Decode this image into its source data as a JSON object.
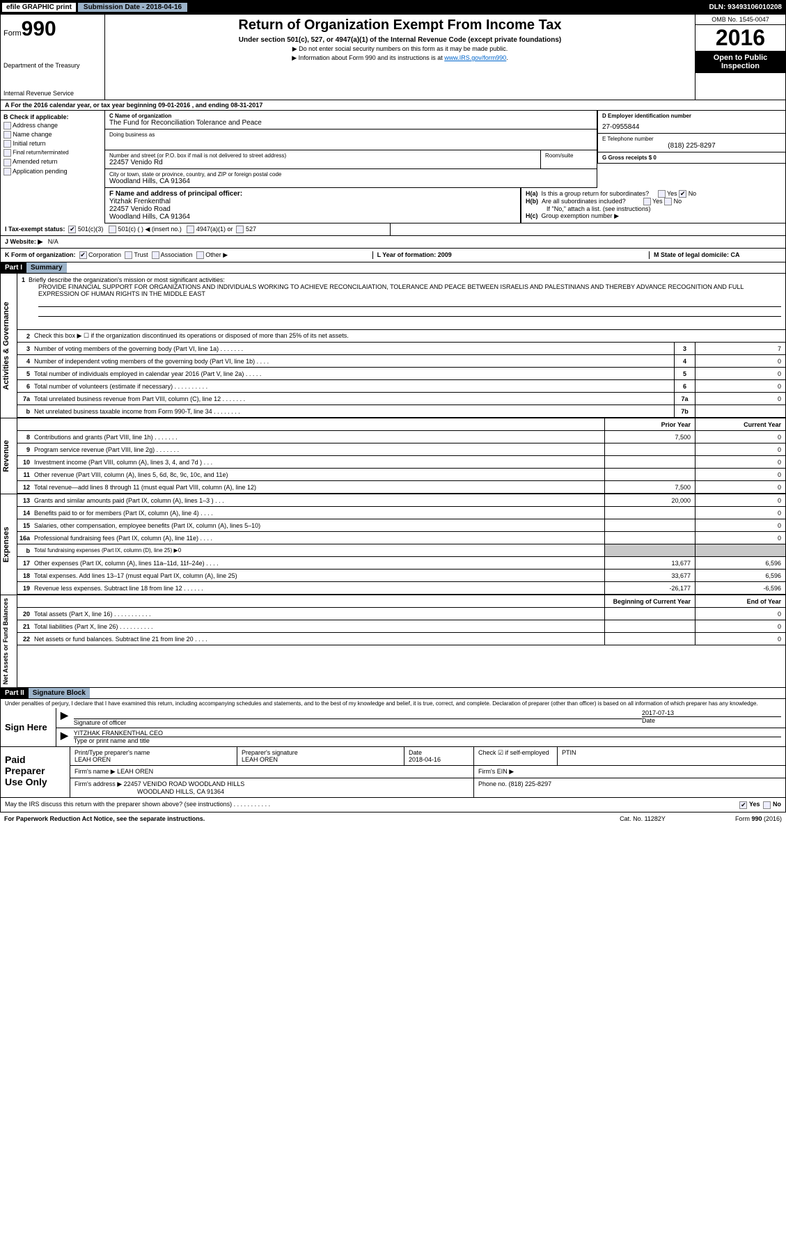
{
  "topbar": {
    "efile": "efile GRAPHIC print",
    "submission": "Submission Date - 2018-04-16",
    "dln": "DLN: 93493106010208"
  },
  "header": {
    "form_prefix": "Form",
    "form_no": "990",
    "dept1": "Department of the Treasury",
    "dept2": "Internal Revenue Service",
    "title": "Return of Organization Exempt From Income Tax",
    "sub1": "Under section 501(c), 527, or 4947(a)(1) of the Internal Revenue Code (except private foundations)",
    "sub2a": "▶ Do not enter social security numbers on this form as it may be made public.",
    "sub2b": "▶ Information about Form 990 and its instructions is at ",
    "link": "www.IRS.gov/form990",
    "omb": "OMB No. 1545-0047",
    "year": "2016",
    "open1": "Open to Public",
    "open2": "Inspection"
  },
  "rowA": "A  For the 2016 calendar year, or tax year beginning 09-01-2016     , and ending 08-31-2017",
  "colB": {
    "hdr": "B Check if applicable:",
    "items": [
      "Address change",
      "Name change",
      "Initial return",
      "Final return/terminated",
      "Amended return",
      "Application pending"
    ]
  },
  "boxC": {
    "lbl": "C Name of organization",
    "val": "The Fund for Reconciliation Tolerance and Peace",
    "dba_lbl": "Doing business as",
    "addr_lbl": "Number and street (or P.O. box if mail is not delivered to street address)",
    "addr": "22457 Venido Rd",
    "room_lbl": "Room/suite",
    "city_lbl": "City or town, state or province, country, and ZIP or foreign postal code",
    "city": "Woodland Hills, CA  91364"
  },
  "boxD": {
    "lbl": "D Employer identification number",
    "val": "27-0955844"
  },
  "boxE": {
    "lbl": "E Telephone number",
    "val": "(818) 225-8297"
  },
  "boxG": {
    "lbl": "G Gross receipts $ 0"
  },
  "boxF": {
    "lbl": "F  Name and address of principal officer:",
    "name": "Yitzhak Frenkenthal",
    "addr1": "22457 Venido Road",
    "addr2": "Woodland Hills, CA  91364"
  },
  "boxH": {
    "ha": "H(a)",
    "ha_txt": "Is this a group return for subordinates?",
    "hb": "H(b)",
    "hb_txt": "Are all subordinates included?",
    "hb_note": "If \"No,\" attach a list. (see instructions)",
    "hc": "H(c)",
    "hc_txt": "Group exemption number ▶",
    "yes": "Yes",
    "no": "No"
  },
  "rowI": {
    "lbl": "I   Tax-exempt status:",
    "opts": [
      "501(c)(3)",
      "501(c) (  ) ◀ (insert no.)",
      "4947(a)(1) or",
      "527"
    ]
  },
  "rowJ": {
    "lbl": "J   Website: ▶",
    "val": "N/A"
  },
  "rowK": {
    "lbl": "K Form of organization:",
    "opts": [
      "Corporation",
      "Trust",
      "Association",
      "Other ▶"
    ],
    "l": "L Year of formation: 2009",
    "m": "M State of legal domicile: CA"
  },
  "part1": {
    "hdr": "Part I",
    "title": "Summary"
  },
  "desc": {
    "num": "1",
    "lbl": "Briefly describe the organization's mission or most significant activities:",
    "txt": "PROVIDE FINANCIAL SUPPORT FOR ORGANIZATIONS AND INDIVIDUALS WORKING TO ACHIEVE RECONCILAIATION, TOLERANCE AND PEACE BETWEEN ISRAELIS AND PALESTINIANS AND THEREBY ADVANCE RECOGNITION AND FULL EXPRESSION OF HUMAN RIGHTS IN THE MIDDLE EAST"
  },
  "line2": "Check this box ▶ ☐ if the organization discontinued its operations or disposed of more than 25% of its net assets.",
  "tabs": {
    "ag": "Activities & Governance",
    "rev": "Revenue",
    "exp": "Expenses",
    "net": "Net Assets or Fund Balances"
  },
  "cols": {
    "prior": "Prior Year",
    "current": "Current Year",
    "beg": "Beginning of Current Year",
    "end": "End of Year"
  },
  "lines_ag": [
    {
      "n": "3",
      "t": "Number of voting members of the governing body (Part VI, line 1a)  .    .    .    .    .    .    .",
      "c": "3",
      "v2": "7"
    },
    {
      "n": "4",
      "t": "Number of independent voting members of the governing body (Part VI, line 1b)  .    .    .    .",
      "c": "4",
      "v2": "0"
    },
    {
      "n": "5",
      "t": "Total number of individuals employed in calendar year 2016 (Part V, line 2a)   .    .    .    .    .",
      "c": "5",
      "v2": "0"
    },
    {
      "n": "6",
      "t": "Total number of volunteers (estimate if necessary)   .    .    .    .    .    .    .    .    .    .",
      "c": "6",
      "v2": "0"
    },
    {
      "n": "7a",
      "t": "Total unrelated business revenue from Part VIII, column (C), line 12  .    .    .    .    .    .    .",
      "c": "7a",
      "v2": "0"
    },
    {
      "n": "b",
      "t": "Net unrelated business taxable income from Form 990-T, line 34   .    .    .    .    .    .    .    .",
      "c": "7b",
      "v2": ""
    }
  ],
  "lines_rev": [
    {
      "n": "8",
      "t": "Contributions and grants (Part VIII, line 1h)   .    .    .    .    .    .    .",
      "v1": "7,500",
      "v2": "0"
    },
    {
      "n": "9",
      "t": "Program service revenue (Part VIII, line 2g)   .    .    .    .    .    .    .",
      "v1": "",
      "v2": "0"
    },
    {
      "n": "10",
      "t": "Investment income (Part VIII, column (A), lines 3, 4, and 7d )   .    .    .",
      "v1": "",
      "v2": "0"
    },
    {
      "n": "11",
      "t": "Other revenue (Part VIII, column (A), lines 5, 6d, 8c, 9c, 10c, and 11e)",
      "v1": "",
      "v2": "0"
    },
    {
      "n": "12",
      "t": "Total revenue—add lines 8 through 11 (must equal Part VIII, column (A), line 12)",
      "v1": "7,500",
      "v2": "0"
    }
  ],
  "lines_exp": [
    {
      "n": "13",
      "t": "Grants and similar amounts paid (Part IX, column (A), lines 1–3 )  .    .    .",
      "v1": "20,000",
      "v2": "0"
    },
    {
      "n": "14",
      "t": "Benefits paid to or for members (Part IX, column (A), line 4)  .    .    .    .",
      "v1": "",
      "v2": "0"
    },
    {
      "n": "15",
      "t": "Salaries, other compensation, employee benefits (Part IX, column (A), lines 5–10)",
      "v1": "",
      "v2": "0"
    },
    {
      "n": "16a",
      "t": "Professional fundraising fees (Part IX, column (A), line 11e)  .    .    .    .",
      "v1": "",
      "v2": "0"
    },
    {
      "n": "b",
      "t": "Total fundraising expenses (Part IX, column (D), line 25) ▶0",
      "shade": true
    },
    {
      "n": "17",
      "t": "Other expenses (Part IX, column (A), lines 11a–11d, 11f–24e)   .    .    .    .",
      "v1": "13,677",
      "v2": "6,596"
    },
    {
      "n": "18",
      "t": "Total expenses. Add lines 13–17 (must equal Part IX, column (A), line 25)",
      "v1": "33,677",
      "v2": "6,596"
    },
    {
      "n": "19",
      "t": "Revenue less expenses. Subtract line 18 from line 12  .    .    .    .    .    .",
      "v1": "-26,177",
      "v2": "-6,596"
    }
  ],
  "lines_net": [
    {
      "n": "20",
      "t": "Total assets (Part X, line 16)  .    .    .    .    .    .    .    .    .    .    .",
      "v1": "",
      "v2": "0"
    },
    {
      "n": "21",
      "t": "Total liabilities (Part X, line 26)  .    .    .    .    .    .    .    .    .    .",
      "v1": "",
      "v2": "0"
    },
    {
      "n": "22",
      "t": "Net assets or fund balances. Subtract line 21 from line 20   .    .    .    .",
      "v1": "",
      "v2": "0"
    }
  ],
  "part2": {
    "hdr": "Part II",
    "title": "Signature Block"
  },
  "penalty": "Under penalties of perjury, I declare that I have examined this return, including accompanying schedules and statements, and to the best of my knowledge and belief, it is true, correct, and complete. Declaration of preparer (other than officer) is based on all information of which preparer has any knowledge.",
  "sign": {
    "here": "Sign Here",
    "date": "2017-07-13",
    "sig_lbl": "Signature of officer",
    "date_lbl": "Date",
    "name": "YITZHAK FRANKENTHAL  CEO",
    "name_lbl": "Type or print name and title"
  },
  "paid": {
    "hdr": "Paid Preparer Use Only",
    "prep_lbl": "Print/Type preparer's name",
    "prep": "LEAH OREN",
    "sig_lbl": "Preparer's signature",
    "sig": "LEAH OREN",
    "date_lbl": "Date",
    "date": "2018-04-16",
    "check_lbl": "Check ☑ if self-employed",
    "ptin_lbl": "PTIN",
    "firm_lbl": "Firm's name    ▶",
    "firm": "LEAH OREN",
    "ein_lbl": "Firm's EIN ▶",
    "addr_lbl": "Firm's address ▶",
    "addr1": "22457 VENIDO ROAD WOODLAND HILLS",
    "addr2": "WOODLAND HILLS, CA  91364",
    "phone_lbl": "Phone no. (818) 225-8297"
  },
  "discuss": "May the IRS discuss this return with the preparer shown above? (see instructions)   .    .    .    .    .    .    .    .    .    .    .",
  "discuss_yes": "Yes",
  "discuss_no": "No",
  "footer": {
    "l": "For Paperwork Reduction Act Notice, see the separate instructions.",
    "c": "Cat. No. 11282Y",
    "r": "Form 990 (2016)"
  }
}
